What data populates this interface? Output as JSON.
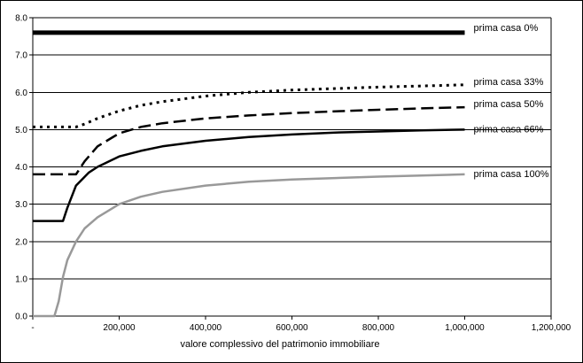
{
  "chart_data": {
    "type": "line",
    "title": "",
    "xlabel": "valore complessivo del patrimonio immobiliare",
    "ylabel": "",
    "xlim": [
      0,
      1200000
    ],
    "ylim": [
      0,
      8
    ],
    "grid": "horizontal",
    "legend": "inline labels at right end of lines",
    "x_ticks": [
      "-",
      "200,000",
      "400,000",
      "600,000",
      "800,000",
      "1,000,000",
      "1,200,000"
    ],
    "y_ticks": [
      "0.0",
      "1.0",
      "2.0",
      "3.0",
      "4.0",
      "5.0",
      "6.0",
      "7.0",
      "8.0"
    ],
    "series": [
      {
        "name": "prima casa 0%",
        "style": "thick-solid",
        "color": "#000000",
        "x": [
          0,
          1000000
        ],
        "y": [
          7.6,
          7.6
        ]
      },
      {
        "name": "prima casa 33%",
        "style": "dotted",
        "color": "#000000",
        "x": [
          0,
          100000,
          120000,
          150000,
          200000,
          250000,
          300000,
          400000,
          500000,
          600000,
          700000,
          800000,
          900000,
          1000000
        ],
        "y": [
          5.07,
          5.07,
          5.15,
          5.3,
          5.5,
          5.65,
          5.75,
          5.9,
          6.0,
          6.06,
          6.1,
          6.14,
          6.17,
          6.2
        ]
      },
      {
        "name": "prima casa 50%",
        "style": "dashed",
        "color": "#000000",
        "x": [
          0,
          100000,
          120000,
          150000,
          200000,
          250000,
          300000,
          400000,
          500000,
          600000,
          700000,
          800000,
          900000,
          1000000
        ],
        "y": [
          3.8,
          3.8,
          4.15,
          4.55,
          4.9,
          5.07,
          5.17,
          5.3,
          5.38,
          5.44,
          5.49,
          5.53,
          5.57,
          5.6
        ]
      },
      {
        "name": "prima casa 66%",
        "style": "solid",
        "color": "#000000",
        "x": [
          0,
          70000,
          80000,
          100000,
          130000,
          150000,
          200000,
          250000,
          300000,
          400000,
          500000,
          600000,
          700000,
          800000,
          900000,
          1000000
        ],
        "y": [
          2.55,
          2.55,
          2.9,
          3.5,
          3.85,
          4.0,
          4.28,
          4.43,
          4.55,
          4.7,
          4.8,
          4.87,
          4.92,
          4.95,
          4.98,
          5.0
        ]
      },
      {
        "name": "prima casa 100%",
        "style": "grey-solid",
        "color": "#999999",
        "x": [
          0,
          50000,
          60000,
          70000,
          80000,
          100000,
          120000,
          150000,
          200000,
          250000,
          300000,
          400000,
          500000,
          600000,
          700000,
          800000,
          900000,
          1000000
        ],
        "y": [
          0,
          0,
          0.4,
          1.05,
          1.5,
          2.0,
          2.35,
          2.65,
          3.0,
          3.2,
          3.33,
          3.5,
          3.6,
          3.66,
          3.7,
          3.74,
          3.77,
          3.8
        ]
      }
    ]
  }
}
